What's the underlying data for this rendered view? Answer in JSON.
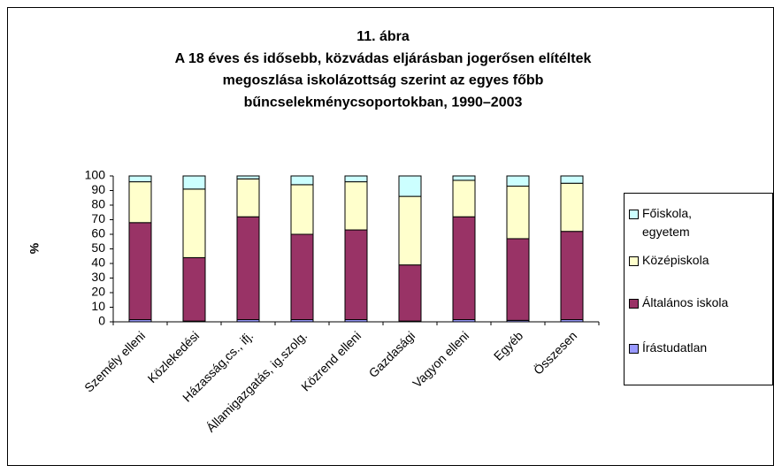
{
  "chart_data": {
    "type": "stacked_bar",
    "title": [
      "11. ábra",
      "A 18 éves és idősebb, közvádas eljárásban jogerősen elítéltek",
      "megoszlása iskolázottság szerint az egyes főbb",
      "bűncselekménycsoportokban, 1990–2003"
    ],
    "ylabel": "%",
    "categories": [
      "Személy elleni",
      "Közlekedési",
      "Házasság,cs., ifj.",
      "Államigazgatás, ig.szolg.",
      "Közrend elleni",
      "Gazdasági",
      "Vagyon elleni",
      "Egyéb",
      "Összesen"
    ],
    "series": [
      {
        "name": "Írástudatlan",
        "color": "#9999ff",
        "values": [
          1.5,
          0.5,
          1.5,
          1.5,
          1.5,
          0.5,
          1.5,
          1,
          1.5
        ]
      },
      {
        "name": "Általános iskola",
        "color": "#993366",
        "values": [
          66.5,
          43.5,
          70.5,
          58.5,
          61.5,
          38.5,
          70.5,
          56,
          60.5
        ]
      },
      {
        "name": "Középiskola",
        "color": "#ffffcc",
        "values": [
          28,
          47,
          26,
          34,
          33,
          47,
          25,
          36,
          33
        ]
      },
      {
        "name": "Főiskola, egyetem",
        "color": "#ccffff",
        "values": [
          4,
          9,
          2,
          6,
          4,
          14,
          3,
          7,
          5
        ]
      }
    ],
    "ylim": [
      0,
      100
    ],
    "yticks": [
      0,
      10,
      20,
      30,
      40,
      50,
      60,
      70,
      80,
      90,
      100
    ],
    "legend": "right"
  }
}
